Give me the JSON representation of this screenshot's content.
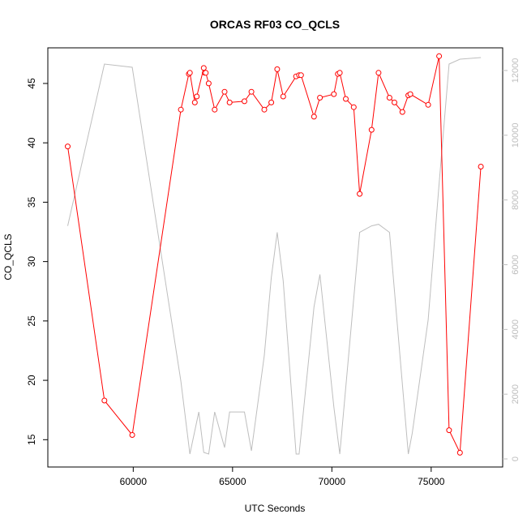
{
  "chart_data": {
    "type": "line",
    "title": "ORCAS RF03 CO_QCLS",
    "xlabel": "UTC Seconds",
    "ylabel": "CO_QCLS",
    "xlim": [
      55700,
      78600
    ],
    "ylim": [
      12.7,
      48.0
    ],
    "y2lim": [
      -250,
      12700
    ],
    "x_ticks": [
      60000,
      65000,
      70000,
      75000
    ],
    "y_ticks": [
      15,
      20,
      25,
      30,
      35,
      40,
      45
    ],
    "y2_ticks": [
      0,
      2000,
      4000,
      6000,
      8000,
      10000,
      12000
    ],
    "grid": false,
    "colors": {
      "primary": "#ff0000",
      "secondary": "#bebebe"
    },
    "series": [
      {
        "axis": "left",
        "style": "line+points",
        "x": [
          56700,
          58550,
          59950,
          62400,
          62800,
          62850,
          63100,
          63200,
          63550,
          63600,
          63650,
          63800,
          64100,
          64600,
          64850,
          65600,
          65950,
          66600,
          66950,
          67250,
          67550,
          68200,
          68350,
          68450,
          69100,
          69400,
          70100,
          70300,
          70400,
          70700,
          71100,
          71400,
          72000,
          72350,
          72900,
          73150,
          73550,
          73850,
          73950,
          74850,
          75400,
          75900,
          76450,
          77500
        ],
        "y": [
          39.7,
          18.3,
          15.4,
          42.8,
          45.8,
          45.9,
          43.4,
          43.9,
          46.3,
          45.9,
          45.9,
          45.0,
          42.8,
          44.3,
          43.4,
          43.5,
          44.3,
          42.8,
          43.4,
          46.2,
          43.9,
          45.6,
          45.7,
          45.7,
          42.2,
          43.8,
          44.1,
          45.8,
          45.9,
          43.7,
          43.0,
          35.7,
          41.1,
          45.9,
          43.8,
          43.4,
          42.6,
          44.0,
          44.1,
          43.2,
          47.3,
          15.8,
          13.9,
          38.0
        ]
      },
      {
        "axis": "right",
        "style": "line",
        "x": [
          56700,
          58550,
          59950,
          62400,
          62850,
          63300,
          63550,
          63800,
          64100,
          64600,
          64850,
          65600,
          65950,
          66600,
          66950,
          67250,
          67550,
          68200,
          68350,
          69100,
          69400,
          70100,
          70400,
          71400,
          72000,
          72350,
          72900,
          73850,
          74050,
          74850,
          75400,
          75900,
          76450,
          77500
        ],
        "y": [
          7200,
          12200,
          12100,
          2400,
          150,
          1450,
          200,
          150,
          1450,
          350,
          1450,
          1450,
          250,
          3200,
          5600,
          7000,
          5500,
          150,
          150,
          4700,
          5700,
          1600,
          150,
          7000,
          7200,
          7250,
          7000,
          150,
          800,
          4300,
          8500,
          12200,
          12350,
          12400
        ]
      }
    ]
  }
}
